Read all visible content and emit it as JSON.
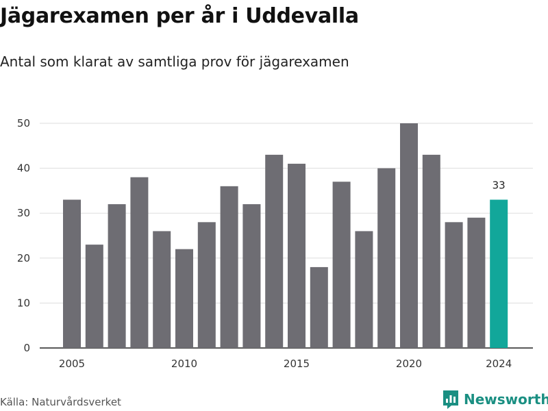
{
  "title": "Jägarexamen per år i Uddevalla",
  "subtitle": "Antal som klarat av samtliga prov för jägarexamen",
  "source": "Källa: Naturvårdsverket",
  "brand": {
    "name": "Newsworthy",
    "icon": "bar-chart-icon",
    "color": "#1a8f82"
  },
  "chart_data": {
    "type": "bar",
    "categories": [
      "2005",
      "2006",
      "2007",
      "2008",
      "2009",
      "2010",
      "2011",
      "2012",
      "2013",
      "2014",
      "2015",
      "2016",
      "2017",
      "2018",
      "2019",
      "2020",
      "2021",
      "2022",
      "2023",
      "2024"
    ],
    "values": [
      33,
      23,
      32,
      38,
      26,
      22,
      28,
      36,
      32,
      43,
      41,
      18,
      37,
      26,
      40,
      50,
      43,
      28,
      29,
      33
    ],
    "x_tick_labels": [
      "2005",
      "2010",
      "2015",
      "2020",
      "2024"
    ],
    "ylim": [
      0,
      50
    ],
    "y_ticks": [
      0,
      10,
      20,
      30,
      40,
      50
    ],
    "grid": true,
    "bar_color": "#6e6d73",
    "highlight": {
      "category": "2024",
      "color": "#12a79a",
      "label": "33"
    }
  }
}
